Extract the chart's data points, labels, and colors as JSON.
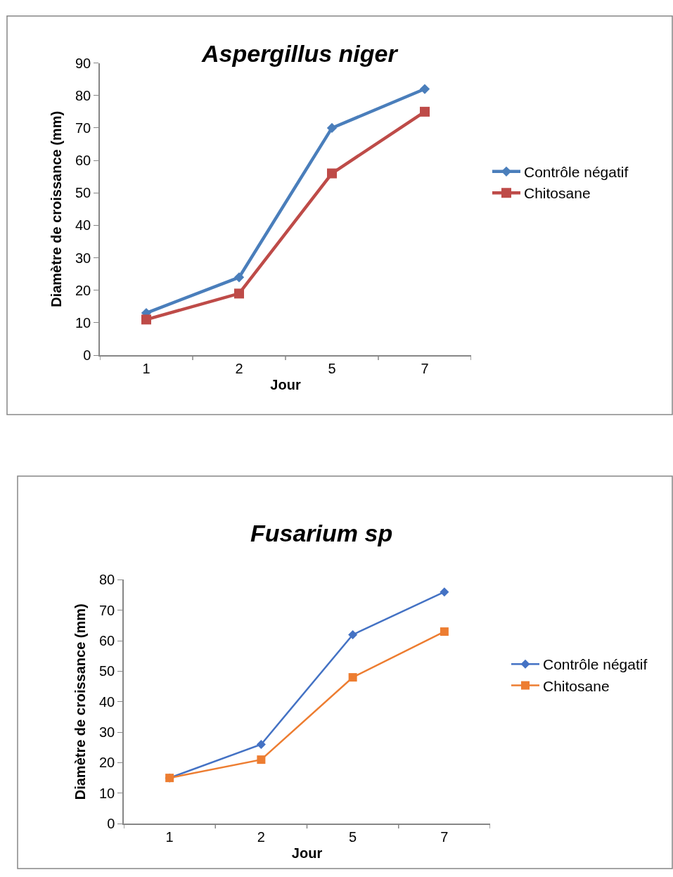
{
  "chart_data": [
    {
      "type": "line",
      "title": "Aspergillus niger",
      "xlabel": "Jour",
      "ylabel": "Diamètre de croissance (mm)",
      "categories": [
        "1",
        "2",
        "5",
        "7"
      ],
      "ylim": [
        0,
        90
      ],
      "yticks": [
        0,
        10,
        20,
        30,
        40,
        50,
        60,
        70,
        80,
        90
      ],
      "legend": "right",
      "series": [
        {
          "name": "Contrôle négatif",
          "color": "#4a7ebb",
          "marker": "diamond",
          "values": [
            13,
            24,
            70,
            82
          ]
        },
        {
          "name": "Chitosane",
          "color": "#be4b48",
          "marker": "square",
          "values": [
            11,
            19,
            56,
            75
          ]
        }
      ]
    },
    {
      "type": "line",
      "title": "Fusarium sp",
      "xlabel": "Jour",
      "ylabel": "Diamètre de croissance (mm)",
      "categories": [
        "1",
        "2",
        "5",
        "7"
      ],
      "ylim": [
        0,
        80
      ],
      "yticks": [
        0,
        10,
        20,
        30,
        40,
        50,
        60,
        70,
        80
      ],
      "legend": "right",
      "series": [
        {
          "name": "Contrôle négatif",
          "color": "#4472c4",
          "marker": "diamond",
          "values": [
            15,
            26,
            62,
            76
          ]
        },
        {
          "name": "Chitosane",
          "color": "#ed7d31",
          "marker": "square",
          "values": [
            15,
            21,
            48,
            63
          ]
        }
      ]
    }
  ]
}
